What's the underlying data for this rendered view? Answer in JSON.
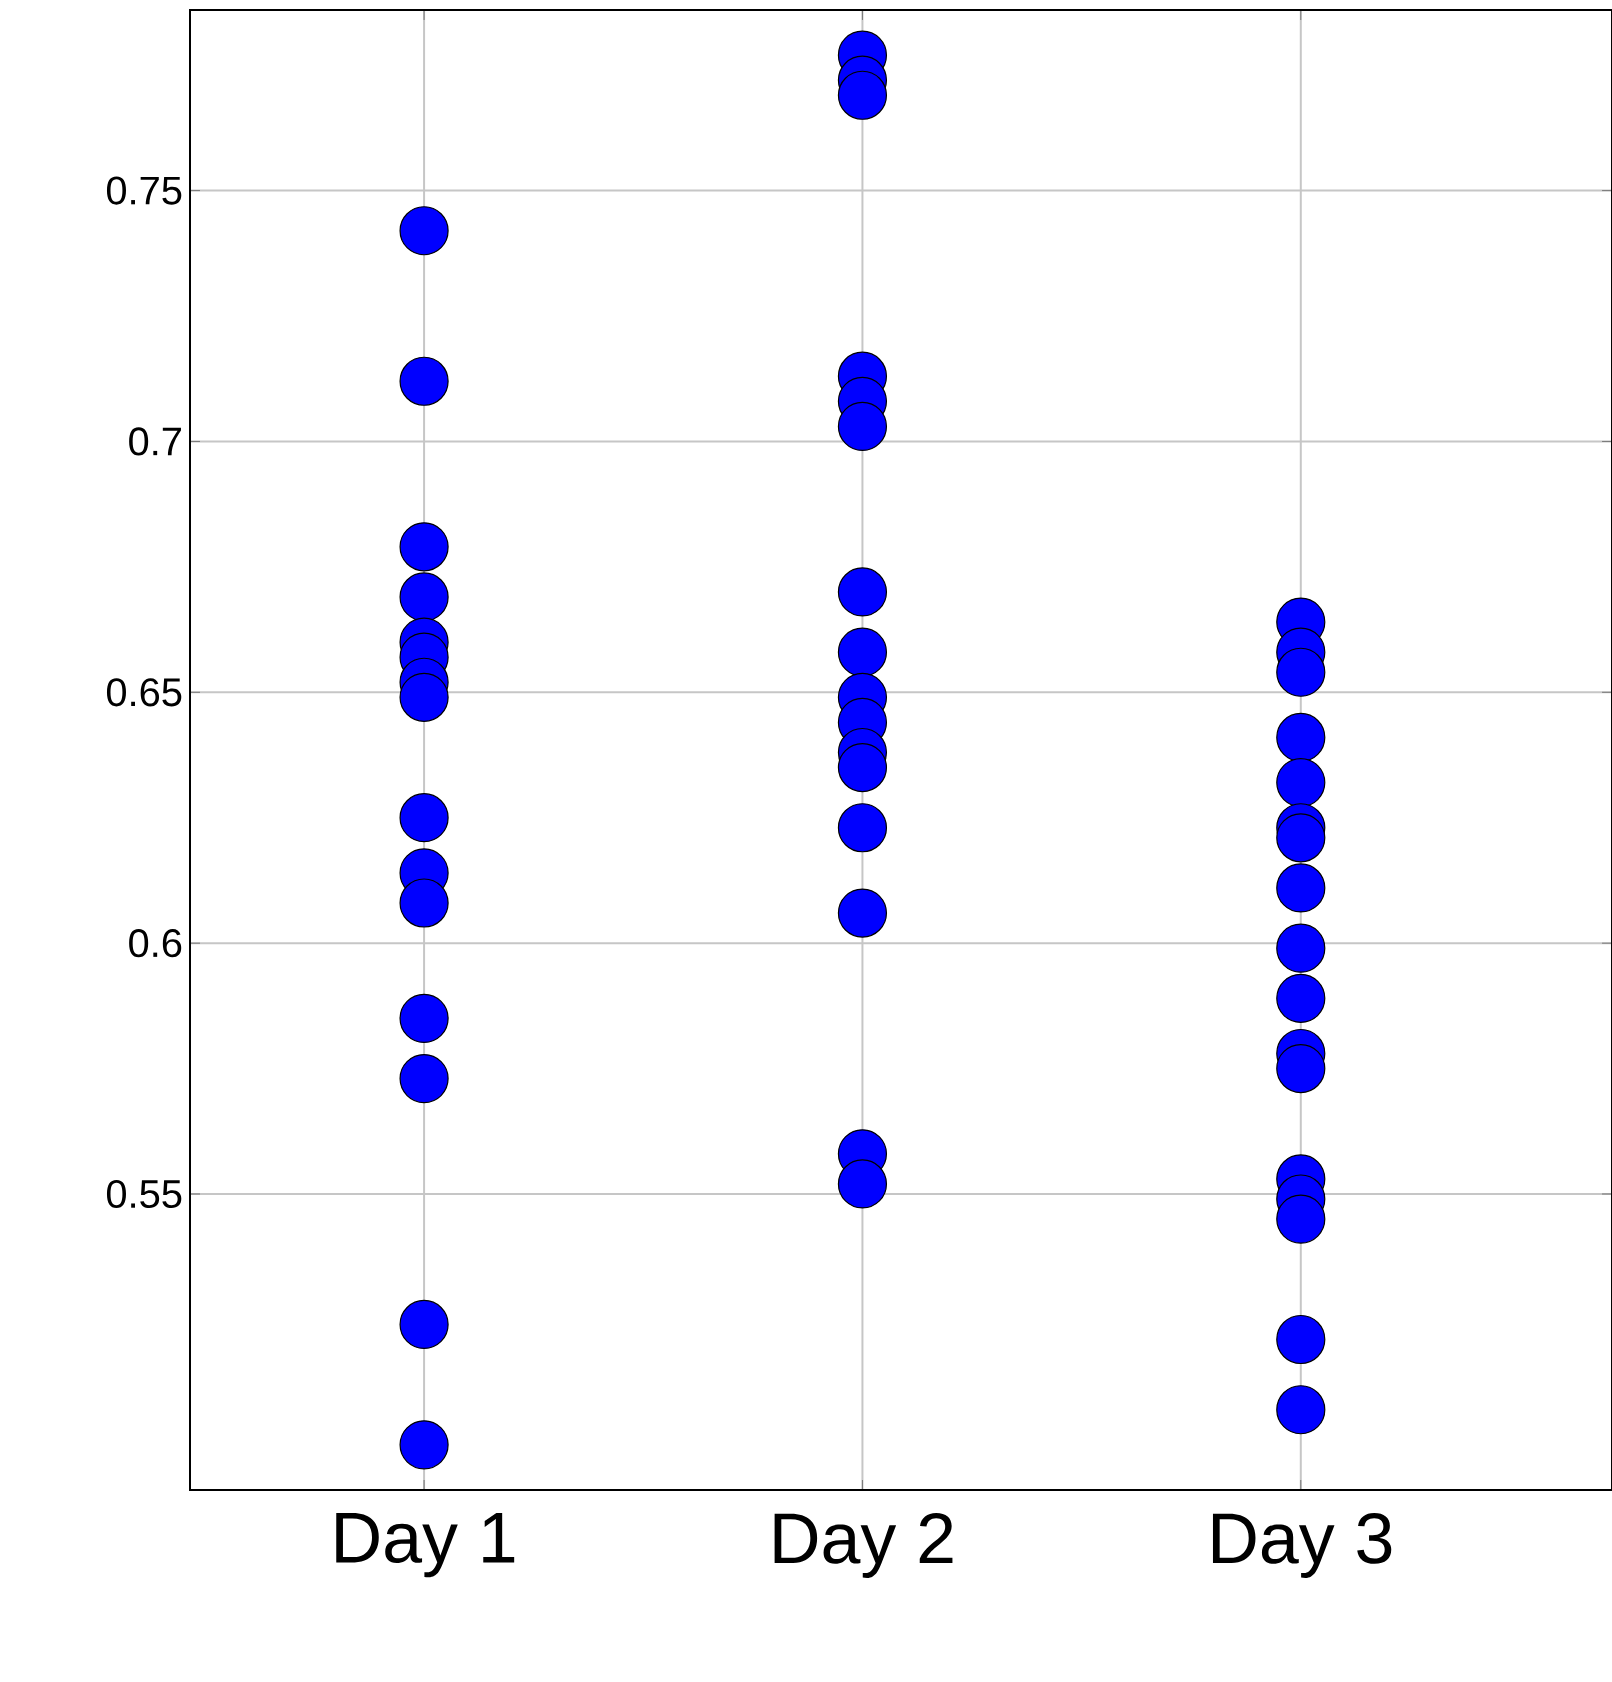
{
  "chart_data": {
    "type": "scatter",
    "categories": [
      "Day 1",
      "Day 2",
      "Day 3"
    ],
    "series": [
      {
        "color": "#0000ff",
        "x": [
          "Day 1",
          "Day 1",
          "Day 1",
          "Day 1",
          "Day 1",
          "Day 1",
          "Day 1",
          "Day 1",
          "Day 1",
          "Day 1",
          "Day 1",
          "Day 1",
          "Day 1",
          "Day 1",
          "Day 1",
          "Day 2",
          "Day 2",
          "Day 2",
          "Day 2",
          "Day 2",
          "Day 2",
          "Day 2",
          "Day 2",
          "Day 2",
          "Day 2",
          "Day 2",
          "Day 2",
          "Day 2",
          "Day 2",
          "Day 2",
          "Day 2",
          "Day 3",
          "Day 3",
          "Day 3",
          "Day 3",
          "Day 3",
          "Day 3",
          "Day 3",
          "Day 3",
          "Day 3",
          "Day 3",
          "Day 3",
          "Day 3",
          "Day 3",
          "Day 3",
          "Day 3",
          "Day 3",
          "Day 3"
        ],
        "values": [
          0.742,
          0.712,
          0.679,
          0.669,
          0.66,
          0.657,
          0.652,
          0.649,
          0.625,
          0.614,
          0.608,
          0.585,
          0.573,
          0.524,
          0.5,
          0.777,
          0.772,
          0.769,
          0.713,
          0.708,
          0.703,
          0.67,
          0.658,
          0.649,
          0.644,
          0.638,
          0.635,
          0.623,
          0.606,
          0.558,
          0.552,
          0.664,
          0.658,
          0.654,
          0.641,
          0.632,
          0.623,
          0.621,
          0.611,
          0.599,
          0.589,
          0.578,
          0.575,
          0.553,
          0.549,
          0.545,
          0.521,
          0.507
        ]
      }
    ],
    "ylim": [
      0.491,
      0.786
    ],
    "yticks": [
      0.55,
      0.6,
      0.65,
      0.7,
      0.75
    ],
    "grid": true,
    "marker": "circle"
  }
}
